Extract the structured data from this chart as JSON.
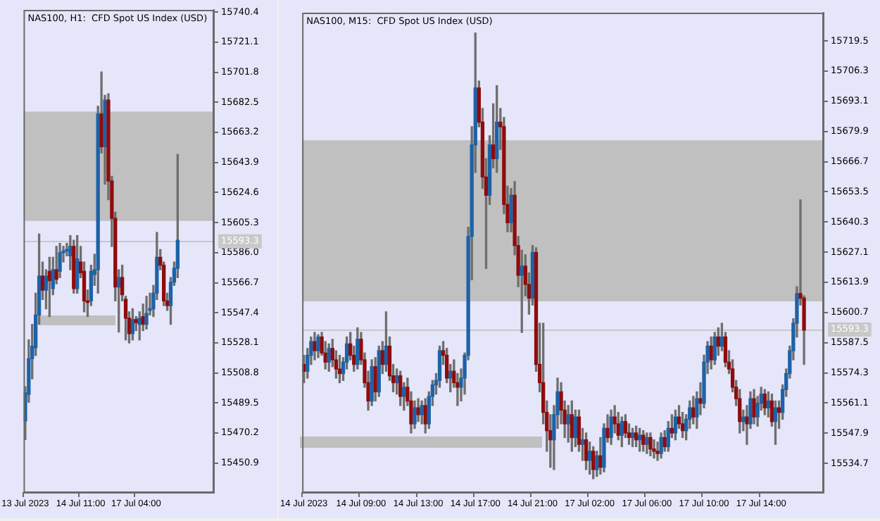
{
  "chart_data": [
    {
      "type": "candlestick",
      "title": "NAS100, H1:  CFD Spot US Index (USD)",
      "categories": [
        "13 Jul 2023",
        null,
        null,
        null,
        null,
        null,
        null,
        null,
        null,
        null,
        null,
        null,
        null,
        null,
        null,
        null,
        "14 Jul 11:00",
        null,
        null,
        null,
        null,
        null,
        null,
        null,
        null,
        null,
        null,
        null,
        null,
        null,
        null,
        null,
        "17 Jul 04:00",
        null,
        null,
        null,
        null,
        null,
        null,
        null,
        null,
        null,
        null,
        null,
        null,
        null,
        null,
        null,
        null,
        null,
        null,
        null,
        null,
        null,
        null
      ],
      "ohlc": [
        [
          15478,
          15500,
          15466,
          15496
        ],
        [
          15495,
          15530,
          15490,
          15518
        ],
        [
          15518,
          15540,
          15505,
          15526
        ],
        [
          15525,
          15560,
          15520,
          15546
        ],
        [
          15546,
          15598,
          15540,
          15571
        ],
        [
          15571,
          15580,
          15556,
          15562
        ],
        [
          15562,
          15575,
          15550,
          15571
        ],
        [
          15574,
          15583,
          15545,
          15568
        ],
        [
          15563,
          15583,
          15559,
          15575
        ],
        [
          15575,
          15590,
          15566,
          15569
        ],
        [
          15574,
          15592,
          15570,
          15586
        ],
        [
          15586,
          15590,
          15580,
          15587
        ],
        [
          15587,
          15592,
          15584,
          15588
        ],
        [
          15584,
          15597,
          15575,
          15590
        ],
        [
          15590,
          15594,
          15560,
          15563
        ],
        [
          15563,
          15597,
          15560,
          15582
        ],
        [
          15580,
          15590,
          15570,
          15573
        ],
        [
          15574,
          15580,
          15548,
          15555
        ],
        [
          15555,
          15562,
          15545,
          15554
        ],
        [
          15555,
          15578,
          15552,
          15574
        ],
        [
          15572,
          15585,
          15565,
          15575
        ],
        [
          15575,
          15680,
          15560,
          15675
        ],
        [
          15675,
          15702,
          15650,
          15654
        ],
        [
          15654,
          15687,
          15630,
          15684
        ],
        [
          15684,
          15688,
          15620,
          15632
        ],
        [
          15632,
          15635,
          15590,
          15608
        ],
        [
          15608,
          15612,
          15555,
          15564
        ],
        [
          15564,
          15575,
          15535,
          15570
        ],
        [
          15570,
          15578,
          15555,
          15559
        ],
        [
          15556,
          15558,
          15530,
          15544
        ],
        [
          15544,
          15548,
          15528,
          15534
        ],
        [
          15534,
          15550,
          15530,
          15543
        ],
        [
          15543,
          15545,
          15536,
          15541
        ],
        [
          15540,
          15548,
          15530,
          15544
        ],
        [
          15545,
          15553,
          15536,
          15540
        ],
        [
          15540,
          15558,
          15537,
          15547
        ],
        [
          15549,
          15560,
          15546,
          15550
        ],
        [
          15550,
          15565,
          15545,
          15560
        ],
        [
          15560,
          15599,
          15556,
          15583
        ],
        [
          15583,
          15588,
          15575,
          15578
        ],
        [
          15578,
          15580,
          15552,
          15555
        ],
        [
          15555,
          15560,
          15549,
          15552
        ],
        [
          15552,
          15570,
          15540,
          15567
        ],
        [
          15567,
          15580,
          15565,
          15576
        ],
        [
          15576,
          15649,
          15570,
          15594
        ],
        null,
        null,
        null,
        null,
        null,
        null,
        null,
        null,
        null,
        null
      ],
      "ylim": [
        15431.8,
        15741.9
      ],
      "yticks": [
        15450.9,
        15470.2,
        15489.5,
        15508.8,
        15528.1,
        15547.4,
        15566.7,
        {
          "value": 15586,
          "label": "15586.0"
        },
        15605.3,
        15624.6,
        15643.9,
        15663.2,
        15682.5,
        15701.8,
        15721.1,
        15740.4
      ],
      "bands": [
        {
          "axis": "y",
          "from": 15606.4,
          "to": 15676.6,
          "color": "#c0c0c0"
        }
      ],
      "ref_lines": [
        {
          "axis": "y",
          "value": 15593.3,
          "label": "15593.3",
          "color": "#c8c8c8"
        }
      ]
    },
    {
      "type": "candlestick",
      "title": "NAS100, M15:  CFD Spot US Index (USD)",
      "categories": [
        "14 Jul 2023",
        null,
        null,
        null,
        null,
        null,
        null,
        null,
        null,
        null,
        null,
        null,
        null,
        null,
        null,
        null,
        "14 Jul 09:00",
        null,
        null,
        null,
        null,
        null,
        null,
        null,
        null,
        null,
        null,
        null,
        null,
        null,
        null,
        null,
        "14 Jul 13:00",
        null,
        null,
        null,
        null,
        null,
        null,
        null,
        null,
        null,
        null,
        null,
        null,
        null,
        null,
        null,
        "14 Jul 17:00",
        null,
        null,
        null,
        null,
        null,
        null,
        null,
        null,
        null,
        null,
        null,
        null,
        null,
        null,
        null,
        "14 Jul 21:00",
        null,
        null,
        null,
        null,
        null,
        null,
        null,
        null,
        null,
        null,
        null,
        null,
        null,
        null,
        null,
        "17 Jul 02:00",
        null,
        null,
        null,
        null,
        null,
        null,
        null,
        null,
        null,
        null,
        null,
        null,
        null,
        null,
        null,
        "17 Jul 06:00",
        null,
        null,
        null,
        null,
        null,
        null,
        null,
        null,
        null,
        null,
        null,
        null,
        null,
        null,
        null,
        "17 Jul 10:00",
        null,
        null,
        null,
        null,
        null,
        null,
        null,
        null,
        null,
        null,
        null,
        null,
        null,
        null,
        null,
        "17 Jul 14:00",
        null,
        null,
        null,
        null,
        null,
        null,
        null,
        null,
        null,
        null,
        null,
        null,
        null,
        null,
        null,
        null,
        null
      ],
      "ohlc": [
        [
          15578,
          15582,
          15570,
          15575
        ],
        [
          15575,
          15585,
          15572,
          15582
        ],
        [
          15582,
          15590,
          15578,
          15588
        ],
        [
          15588,
          15592,
          15580,
          15584
        ],
        [
          15584,
          15591,
          15581,
          15590
        ],
        [
          15590,
          15592,
          15582,
          15583
        ],
        [
          15583,
          15588,
          15576,
          15579
        ],
        [
          15579,
          15587,
          15575,
          15585
        ],
        [
          15585,
          15589,
          15577,
          15580
        ],
        [
          15580,
          15584,
          15572,
          15576
        ],
        [
          15576,
          15582,
          15570,
          15574
        ],
        [
          15574,
          15581,
          15571,
          15579
        ],
        [
          15579,
          15590,
          15576,
          15587
        ],
        [
          15587,
          15592,
          15580,
          15582
        ],
        [
          15582,
          15586,
          15575,
          15578
        ],
        [
          15578,
          15594,
          15576,
          15589
        ],
        [
          15589,
          15592,
          15578,
          15580
        ],
        [
          15580,
          15583,
          15568,
          15570
        ],
        [
          15570,
          15575,
          15558,
          15562
        ],
        [
          15562,
          15580,
          15560,
          15577
        ],
        [
          15577,
          15581,
          15562,
          15566
        ],
        [
          15566,
          15586,
          15564,
          15584
        ],
        [
          15584,
          15588,
          15574,
          15578
        ],
        [
          15578,
          15601,
          15575,
          15586
        ],
        [
          15586,
          15590,
          15571,
          15573
        ],
        [
          15573,
          15578,
          15566,
          15570
        ],
        [
          15570,
          15576,
          15565,
          15573
        ],
        [
          15573,
          15575,
          15560,
          15564
        ],
        [
          15564,
          15570,
          15558,
          15568
        ],
        [
          15568,
          15572,
          15560,
          15562
        ],
        [
          15562,
          15566,
          15548,
          15552
        ],
        [
          15552,
          15562,
          15550,
          15559
        ],
        [
          15559,
          15563,
          15553,
          15556
        ],
        [
          15556,
          15562,
          15552,
          15560
        ],
        [
          15560,
          15563,
          15548,
          15552
        ],
        [
          15552,
          15566,
          15550,
          15564
        ],
        [
          15564,
          15571,
          15560,
          15569
        ],
        [
          15569,
          15574,
          15565,
          15571
        ],
        [
          15571,
          15586,
          15568,
          15584
        ],
        [
          15584,
          15588,
          15578,
          15582
        ],
        [
          15582,
          15585,
          15570,
          15572
        ],
        [
          15572,
          15578,
          15566,
          15575
        ],
        [
          15575,
          15580,
          15568,
          15570
        ],
        [
          15570,
          15574,
          15560,
          15568
        ],
        [
          15568,
          15576,
          15562,
          15572
        ],
        [
          15572,
          15583,
          15565,
          15582
        ],
        [
          15582,
          15638,
          15580,
          15634
        ],
        [
          15634,
          15682,
          15615,
          15674
        ],
        [
          15674,
          15723,
          15662,
          15699
        ],
        [
          15699,
          15702,
          15682,
          15684
        ],
        [
          15684,
          15690,
          15655,
          15660
        ],
        [
          15660,
          15668,
          15620,
          15652
        ],
        [
          15652,
          15678,
          15648,
          15674
        ],
        [
          15674,
          15692,
          15664,
          15668
        ],
        [
          15668,
          15700,
          15662,
          15684
        ],
        [
          15684,
          15690,
          15672,
          15682
        ],
        [
          15682,
          15686,
          15644,
          15648
        ],
        [
          15648,
          15656,
          15636,
          15640
        ],
        [
          15640,
          15655,
          15636,
          15652
        ],
        [
          15652,
          15658,
          15626,
          15630
        ],
        [
          15630,
          15634,
          15612,
          15617
        ],
        [
          15617,
          15628,
          15592,
          15621
        ],
        [
          15621,
          15626,
          15608,
          15613
        ],
        [
          15613,
          15618,
          15600,
          15607
        ],
        [
          15607,
          15630,
          15604,
          15627
        ],
        [
          15627,
          15629,
          15575,
          15578
        ],
        [
          15578,
          15596,
          15566,
          15570
        ],
        [
          15570,
          15596,
          15552,
          15557
        ],
        [
          15557,
          15562,
          15540,
          15549
        ],
        [
          15549,
          15556,
          15533,
          15545
        ],
        [
          15545,
          15560,
          15532,
          15556
        ],
        [
          15556,
          15572,
          15550,
          15566
        ],
        [
          15566,
          15570,
          15552,
          15558
        ],
        [
          15558,
          15562,
          15546,
          15552
        ],
        [
          15552,
          15560,
          15544,
          15556
        ],
        [
          15556,
          15562,
          15540,
          15546
        ],
        [
          15546,
          15558,
          15542,
          15555
        ],
        [
          15555,
          15558,
          15540,
          15543
        ],
        [
          15543,
          15550,
          15536,
          15545
        ],
        [
          15545,
          15548,
          15532,
          15536
        ],
        [
          15536,
          15544,
          15530,
          15540
        ],
        [
          15540,
          15542,
          15528,
          15532
        ],
        [
          15532,
          15540,
          15529,
          15538
        ],
        [
          15538,
          15546,
          15530,
          15533
        ],
        [
          15533,
          15552,
          15531,
          15550
        ],
        [
          15550,
          15556,
          15544,
          15546
        ],
        [
          15546,
          15558,
          15543,
          15555
        ],
        [
          15555,
          15560,
          15548,
          15552
        ],
        [
          15552,
          15557,
          15545,
          15547
        ],
        [
          15547,
          15555,
          15542,
          15553
        ],
        [
          15553,
          15556,
          15546,
          15548
        ],
        [
          15548,
          15552,
          15543,
          15546
        ],
        [
          15546,
          15550,
          15542,
          15548
        ],
        [
          15548,
          15551,
          15542,
          15545
        ],
        [
          15545,
          15550,
          15540,
          15547
        ],
        [
          15547,
          15549,
          15540,
          15543
        ],
        [
          15543,
          15548,
          15539,
          15546
        ],
        [
          15546,
          15548,
          15538,
          15541
        ],
        [
          15541,
          15545,
          15537,
          15540
        ],
        [
          15540,
          15544,
          15536,
          15539
        ],
        [
          15539,
          15548,
          15537,
          15546
        ],
        [
          15546,
          15549,
          15540,
          15542
        ],
        [
          15542,
          15553,
          15540,
          15550
        ],
        [
          15550,
          15556,
          15546,
          15548
        ],
        [
          15548,
          15558,
          15545,
          15555
        ],
        [
          15555,
          15560,
          15550,
          15552
        ],
        [
          15552,
          15557,
          15546,
          15549
        ],
        [
          15549,
          15556,
          15545,
          15554
        ],
        [
          15554,
          15562,
          15550,
          15559
        ],
        [
          15559,
          15564,
          15552,
          15555
        ],
        [
          15555,
          15566,
          15550,
          15563
        ],
        [
          15563,
          15570,
          15556,
          15561
        ],
        [
          15561,
          15582,
          15559,
          15579
        ],
        [
          15579,
          15588,
          15574,
          15586
        ],
        [
          15586,
          15590,
          15576,
          15580
        ],
        [
          15580,
          15592,
          15578,
          15590
        ],
        [
          15590,
          15594,
          15582,
          15586
        ],
        [
          15586,
          15596,
          15584,
          15590
        ],
        [
          15590,
          15592,
          15577,
          15579
        ],
        [
          15579,
          15584,
          15574,
          15576
        ],
        [
          15576,
          15580,
          15566,
          15568
        ],
        [
          15568,
          15571,
          15560,
          15563
        ],
        [
          15563,
          15567,
          15548,
          15553
        ],
        [
          15553,
          15558,
          15549,
          15555
        ],
        [
          15555,
          15560,
          15543,
          15552
        ],
        [
          15552,
          15566,
          15550,
          15563
        ],
        [
          15563,
          15567,
          15552,
          15555
        ],
        [
          15555,
          15564,
          15551,
          15561
        ],
        [
          15561,
          15568,
          15558,
          15565
        ],
        [
          15565,
          15567,
          15556,
          15559
        ],
        [
          15559,
          15566,
          15555,
          15562
        ],
        [
          15562,
          15565,
          15551,
          15553
        ],
        [
          15553,
          15562,
          15543,
          15559
        ],
        [
          15559,
          15562,
          15550,
          15557
        ],
        [
          15557,
          15569,
          15554,
          15567
        ],
        [
          15567,
          15576,
          15564,
          15574
        ],
        [
          15574,
          15586,
          15572,
          15584
        ],
        [
          15584,
          15598,
          15580,
          15596
        ],
        [
          15596,
          15612,
          15590,
          15609
        ],
        [
          15609,
          15650,
          15604,
          15607
        ],
        [
          15607,
          15608,
          15578,
          15593
        ],
        null,
        null,
        null,
        null,
        null
      ],
      "ylim": [
        15521.8,
        15731.9
      ],
      "yticks": [
        15534.7,
        15547.9,
        15561.1,
        15574.3,
        15587.5,
        15600.7,
        15613.9,
        15627.1,
        15640.3,
        15653.5,
        15666.7,
        15679.9,
        15693.1,
        15706.3,
        15719.5
      ],
      "bands": [
        {
          "axis": "y",
          "from": 15605.6,
          "to": 15676.1,
          "color": "#c0c0c0"
        }
      ],
      "ref_lines": [
        {
          "axis": "y",
          "value": 15593.3,
          "label": "15593.3",
          "color": "#c8c8c8"
        }
      ]
    }
  ]
}
